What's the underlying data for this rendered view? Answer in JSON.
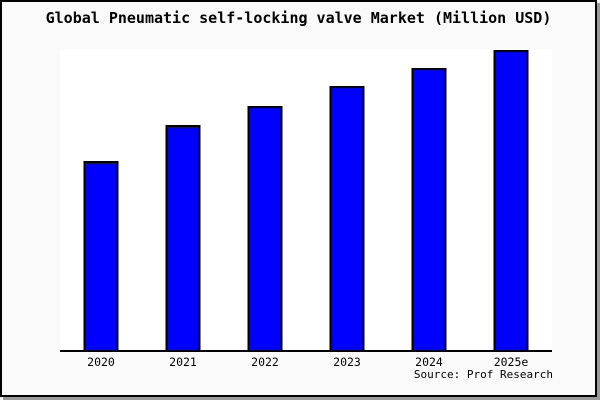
{
  "title": "Global Pneumatic self-locking valve Market (Million USD)",
  "source_label": "Source: Prof Research",
  "colors": {
    "bar_fill": "#0000FF",
    "bar_border": "#000000",
    "figure_background": "#FAFAFA",
    "plot_background": "#FFFFFF",
    "frame_border": "#000000",
    "shadow": "#9a9a9a",
    "text": "#000000"
  },
  "chart_data": {
    "type": "bar",
    "title": "Global Pneumatic self-locking valve Market (Million USD)",
    "categories": [
      "2020",
      "2021",
      "2022",
      "2023",
      "2024",
      "2025e"
    ],
    "values": [
      63,
      75,
      81.5,
      88,
      94,
      100
    ],
    "value_note": "No y-axis scale is shown in the image; values are relative estimates from bar heights with 2025e indexed to 100",
    "xlabel": "",
    "ylabel": "",
    "ylim": [
      0,
      100.33
    ],
    "y_axis_visible": false,
    "grid": false,
    "legend": "none",
    "bar_color": "#0000FF",
    "bar_border_color": "#000000",
    "annotation": "Source: Prof Research"
  }
}
